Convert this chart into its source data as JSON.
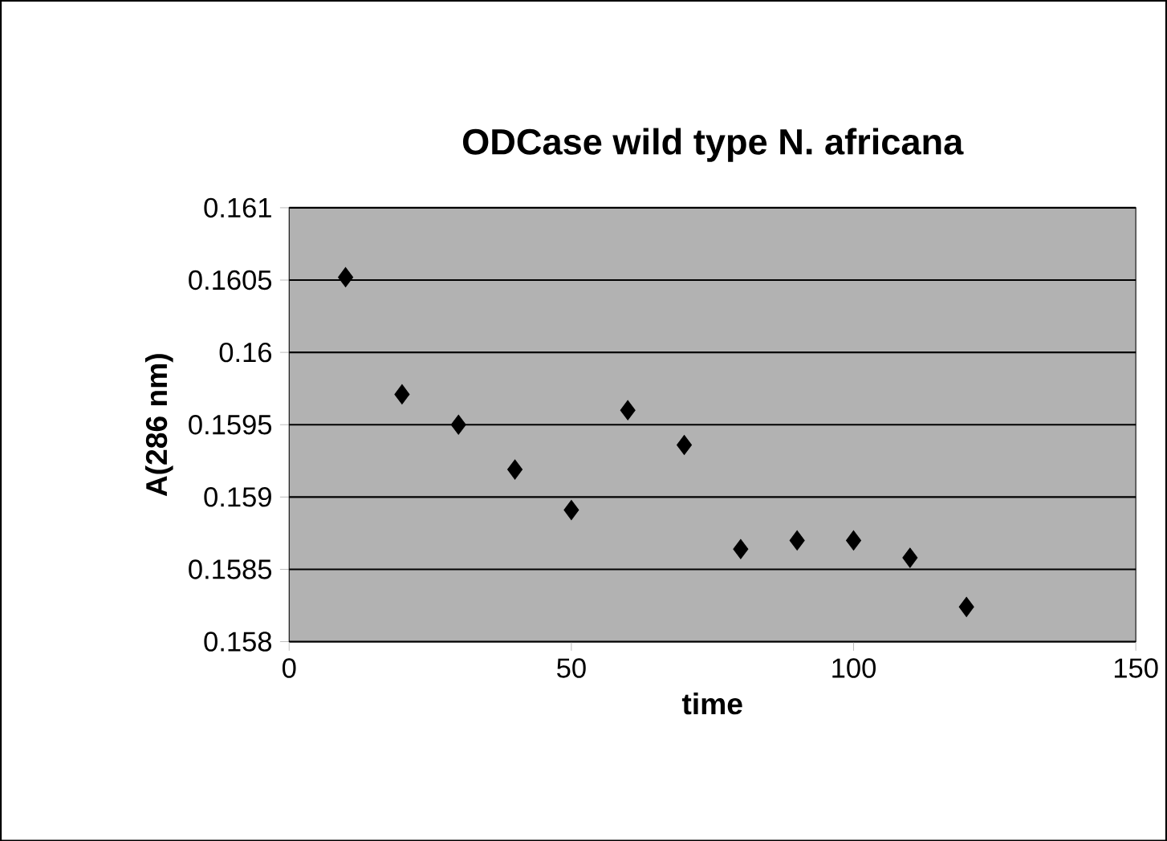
{
  "chart_data": {
    "type": "scatter",
    "title": "ODCase wild type N. africana",
    "xlabel": "time",
    "ylabel": "A(286 nm)",
    "x": [
      10,
      20,
      30,
      40,
      50,
      60,
      70,
      80,
      90,
      100,
      110,
      120
    ],
    "values": [
      0.16052,
      0.15971,
      0.1595,
      0.15919,
      0.15891,
      0.1596,
      0.15936,
      0.15864,
      0.1587,
      0.1587,
      0.15858,
      0.15824
    ],
    "color": "#000000",
    "marker": "diamond",
    "grid": "y",
    "xlim": [
      0,
      150
    ],
    "xticks": [
      0,
      50,
      100,
      150
    ],
    "ylim": [
      0.158,
      0.161
    ],
    "yticks": [
      0.158,
      0.1585,
      0.159,
      0.1595,
      0.16,
      0.1605,
      0.161
    ]
  }
}
